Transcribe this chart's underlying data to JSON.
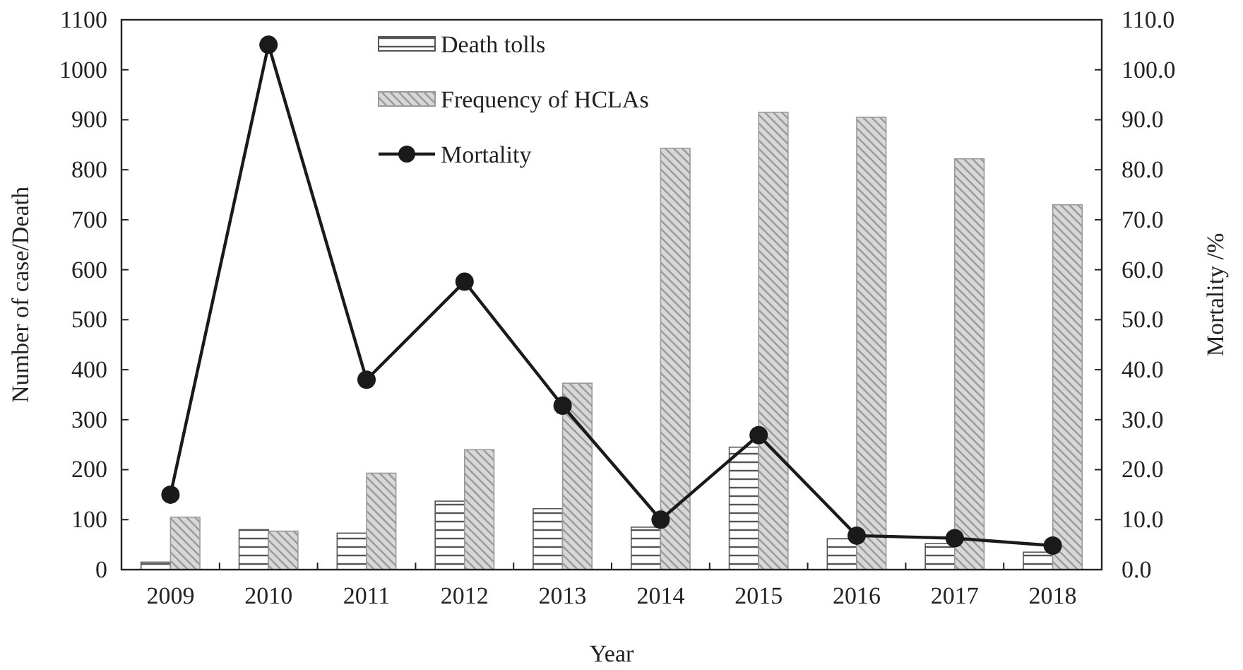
{
  "chart_data": {
    "type": "bar",
    "xlabel": "Year",
    "ylabel": "Number of case/Death",
    "y2label": "Mortality /%",
    "categories": [
      "2009",
      "2010",
      "2011",
      "2012",
      "2013",
      "2014",
      "2015",
      "2016",
      "2017",
      "2018"
    ],
    "series": [
      {
        "name": "Death tolls",
        "color": "#555555",
        "values": [
          15,
          80,
          73,
          137,
          122,
          85,
          245,
          62,
          52,
          35
        ]
      },
      {
        "name": "Frequency of HCLAs",
        "color": "#9a9a9a",
        "values": [
          105,
          77,
          193,
          240,
          373,
          843,
          915,
          905,
          822,
          730
        ]
      },
      {
        "name": "Mortality",
        "type": "line",
        "axis": "y2",
        "color": "#1a1a1a",
        "marker": "circle",
        "values": [
          15.0,
          105.0,
          38.0,
          57.6,
          32.8,
          10.0,
          26.9,
          6.8,
          6.3,
          4.8
        ]
      }
    ],
    "ylim": [
      0,
      1100
    ],
    "yticks": [
      0,
      100,
      200,
      300,
      400,
      500,
      600,
      700,
      800,
      900,
      1000,
      1100
    ],
    "y2lim": [
      0,
      110
    ],
    "y2ticks": [
      {
        "value": 0,
        "label": "0.0"
      },
      {
        "value": 10,
        "label": "10.0"
      },
      {
        "value": 20,
        "label": "20.0"
      },
      {
        "value": 30,
        "label": "30.0"
      },
      {
        "value": 40,
        "label": "40.0"
      },
      {
        "value": 50,
        "label": "50.0"
      },
      {
        "value": 60,
        "label": "60.0"
      },
      {
        "value": 70,
        "label": "70.0"
      },
      {
        "value": 80,
        "label": "80.0"
      },
      {
        "value": 90,
        "label": "90.0"
      },
      {
        "value": 100,
        "label": "100.0"
      },
      {
        "value": 110,
        "label": "110.0"
      }
    ],
    "legend": "top",
    "grid": false
  }
}
